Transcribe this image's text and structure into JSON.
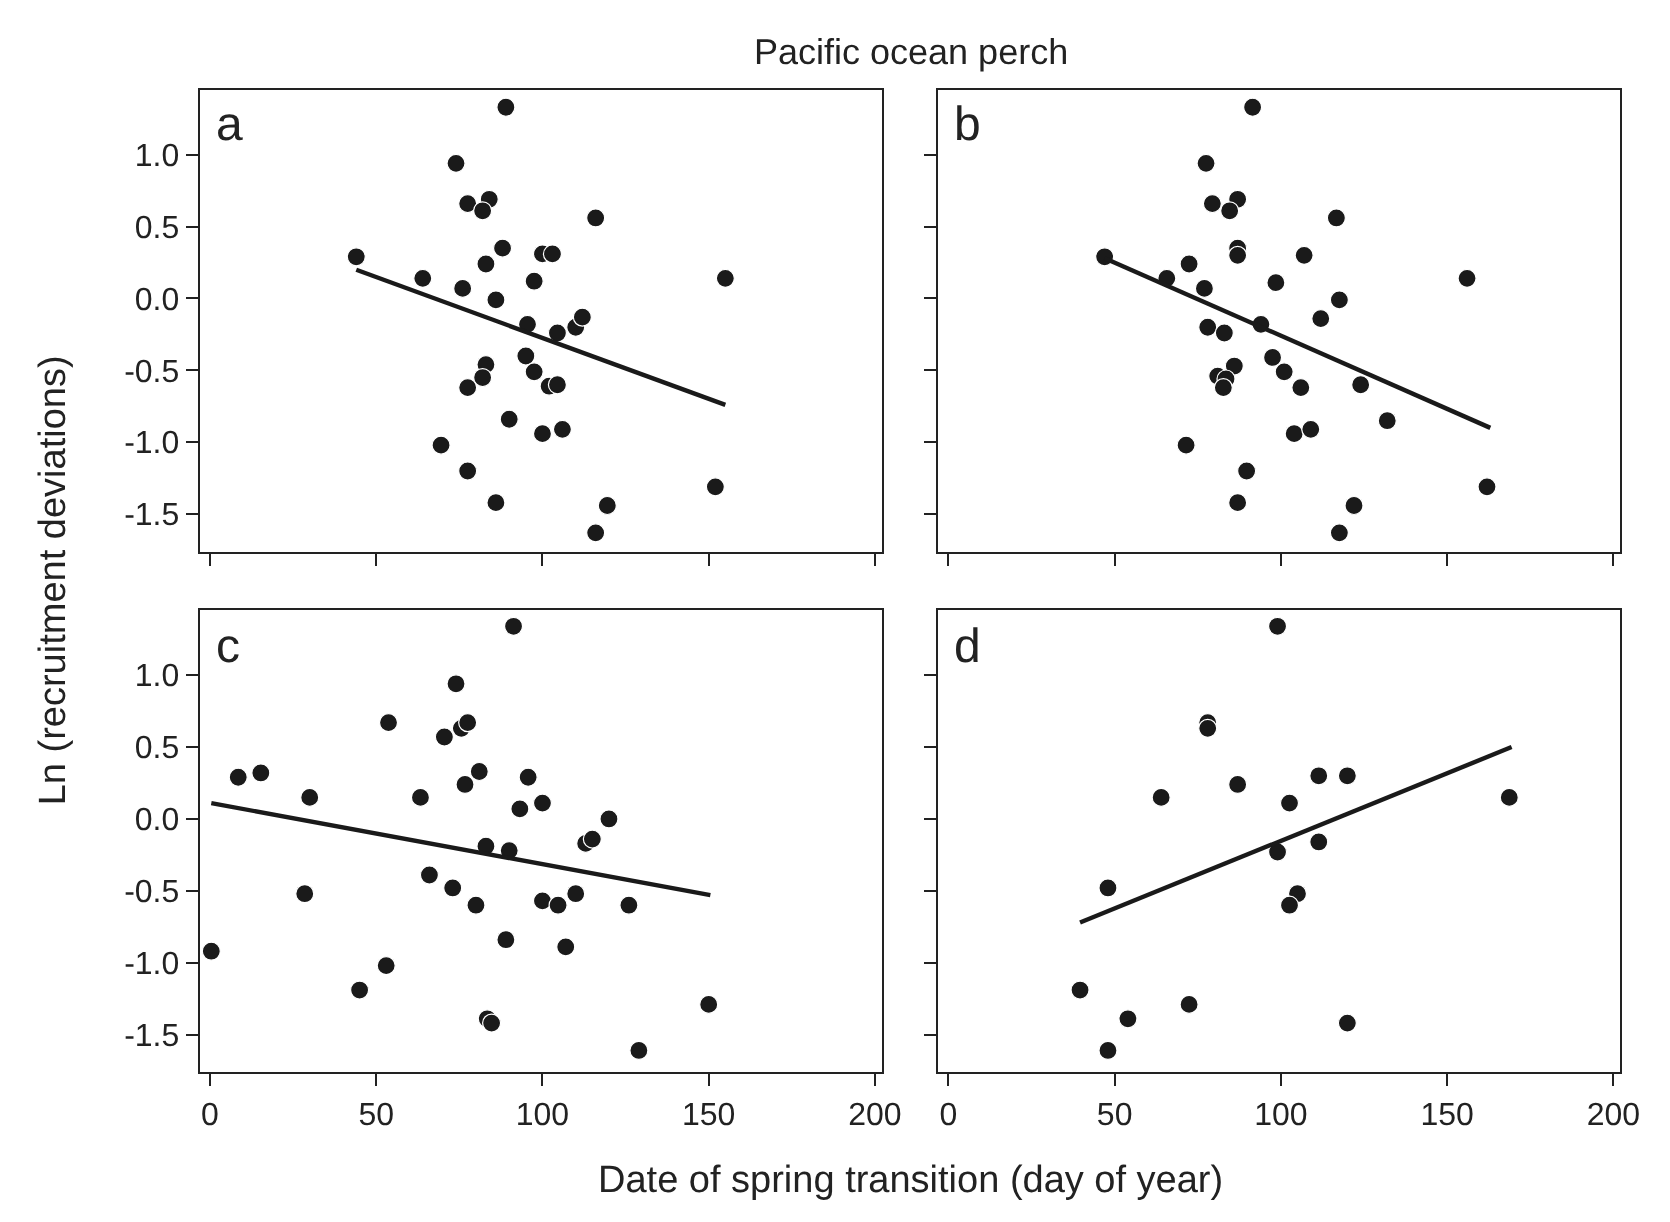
{
  "chart_data": [
    {
      "type": "scatter",
      "title": "a",
      "ylabel": "Ln (recruitment deviations)",
      "annotations": [
        "Pacific ocean perch"
      ],
      "xlim": [
        -3,
        202
      ],
      "ylim": [
        -1.76,
        1.45
      ],
      "xticks": [
        0,
        50,
        100,
        150,
        200
      ],
      "yticks": [
        {
          "value": -1.5,
          "label": "-1.5"
        },
        {
          "value": -1.0,
          "label": "-1.0"
        },
        {
          "value": -0.5,
          "label": "-0.5"
        },
        {
          "value": 0.0,
          "label": "0.0"
        },
        {
          "value": 0.5,
          "label": "0.5"
        },
        {
          "value": 1.0,
          "label": "1.0"
        }
      ],
      "tick_labels": "y",
      "marker": "circle",
      "series": [
        {
          "color": "#1a1a1a",
          "x": [
            89,
            74,
            77.5,
            84,
            82,
            116,
            44,
            88,
            83,
            100,
            103,
            64,
            76,
            97.5,
            86,
            155,
            95.5,
            104.5,
            110,
            112,
            83,
            82,
            77.5,
            95,
            97.5,
            102,
            104.5,
            90,
            100,
            106,
            69.5,
            77.5,
            86,
            152,
            119.5,
            116
          ],
          "values": [
            1.33,
            0.94,
            0.66,
            0.69,
            0.61,
            0.56,
            0.29,
            0.35,
            0.24,
            0.31,
            0.31,
            0.14,
            0.07,
            0.12,
            -0.01,
            0.14,
            -0.18,
            -0.24,
            -0.2,
            -0.13,
            -0.46,
            -0.55,
            -0.62,
            -0.4,
            -0.51,
            -0.61,
            -0.6,
            -0.84,
            -0.94,
            -0.91,
            -1.02,
            -1.2,
            -1.42,
            -1.31,
            -1.44,
            -1.63
          ]
        },
        {
          "type": "line",
          "marker": "none",
          "color": "#1a1a1a",
          "x": [
            44,
            155
          ],
          "values": [
            0.2,
            -0.74
          ]
        }
      ]
    },
    {
      "type": "scatter",
      "title": "b",
      "xlim": [
        -3,
        202
      ],
      "ylim": [
        -1.76,
        1.45
      ],
      "xticks": [
        0,
        50,
        100,
        150,
        200
      ],
      "yticks": [
        {
          "value": -1.5,
          "label": null
        },
        {
          "value": -1.0,
          "label": null
        },
        {
          "value": -0.5,
          "label": null
        },
        {
          "value": 0.0,
          "label": null
        },
        {
          "value": 0.5,
          "label": null
        },
        {
          "value": 1.0,
          "label": null
        }
      ],
      "tick_labels": false,
      "marker": "circle",
      "series": [
        {
          "color": "#1a1a1a",
          "x": [
            91.5,
            77.5,
            79.4,
            87,
            84.6,
            116.7,
            47,
            87,
            87,
            107,
            72.4,
            65.7,
            77,
            98.5,
            117.6,
            156,
            112,
            94,
            78,
            83,
            97.5,
            101,
            86,
            81,
            83.5,
            82.7,
            106,
            124,
            104,
            109,
            132,
            71.5,
            89.7,
            87,
            122,
            117.6,
            162
          ],
          "values": [
            1.33,
            0.94,
            0.66,
            0.69,
            0.61,
            0.56,
            0.29,
            0.35,
            0.3,
            0.3,
            0.24,
            0.14,
            0.07,
            0.11,
            -0.01,
            0.14,
            -0.14,
            -0.18,
            -0.2,
            -0.24,
            -0.41,
            -0.51,
            -0.47,
            -0.54,
            -0.56,
            -0.62,
            -0.62,
            -0.6,
            -0.94,
            -0.91,
            -0.85,
            -1.02,
            -1.2,
            -1.42,
            -1.44,
            -1.63,
            -1.31
          ]
        },
        {
          "type": "line",
          "marker": "none",
          "color": "#1a1a1a",
          "x": [
            47,
            163
          ],
          "values": [
            0.28,
            -0.9
          ]
        }
      ]
    },
    {
      "type": "scatter",
      "title": "c",
      "xlabel": "Date of spring transition (day of year)",
      "xlim": [
        -3,
        202
      ],
      "ylim": [
        -1.76,
        1.45
      ],
      "xticks": [
        0,
        50,
        100,
        150,
        200
      ],
      "yticks": [
        {
          "value": -1.5,
          "label": "-1.5"
        },
        {
          "value": -1.0,
          "label": "-1.0"
        },
        {
          "value": -0.5,
          "label": "-0.5"
        },
        {
          "value": 0.0,
          "label": "0.0"
        },
        {
          "value": 0.5,
          "label": "0.5"
        },
        {
          "value": 1.0,
          "label": "1.0"
        }
      ],
      "marker": "circle",
      "series": [
        {
          "color": "#1a1a1a",
          "x": [
            91.3,
            74,
            53.7,
            70.5,
            75.6,
            77.5,
            8.5,
            15.3,
            81,
            95.7,
            76.7,
            30,
            63.3,
            93.2,
            100,
            120,
            113,
            115,
            83,
            90,
            66,
            73,
            80,
            28.5,
            100,
            104.7,
            110,
            126,
            0.4,
            89,
            107,
            53,
            45,
            83.4,
            84.7,
            150,
            129
          ],
          "values": [
            1.34,
            0.94,
            0.67,
            0.57,
            0.63,
            0.67,
            0.29,
            0.32,
            0.33,
            0.29,
            0.24,
            0.15,
            0.15,
            0.07,
            0.11,
            0.0,
            -0.17,
            -0.14,
            -0.19,
            -0.22,
            -0.39,
            -0.48,
            -0.6,
            -0.52,
            -0.57,
            -0.6,
            -0.52,
            -0.6,
            -0.92,
            -0.84,
            -0.89,
            -1.02,
            -1.19,
            -1.39,
            -1.42,
            -1.29,
            -1.61
          ]
        },
        {
          "type": "line",
          "marker": "none",
          "color": "#1a1a1a",
          "x": [
            0.4,
            150.5
          ],
          "values": [
            0.11,
            -0.53
          ]
        }
      ]
    },
    {
      "type": "scatter",
      "title": "d",
      "xlim": [
        -3,
        202
      ],
      "ylim": [
        -1.76,
        1.45
      ],
      "xticks": [
        0,
        50,
        100,
        150,
        200
      ],
      "yticks": [
        {
          "value": -1.5,
          "label": null
        },
        {
          "value": -1.0,
          "label": null
        },
        {
          "value": -0.5,
          "label": null
        },
        {
          "value": 0.0,
          "label": null
        },
        {
          "value": 0.5,
          "label": null
        },
        {
          "value": 1.0,
          "label": null
        }
      ],
      "tick_labels": "x",
      "marker": "circle",
      "series": [
        {
          "color": "#1a1a1a",
          "x": [
            99,
            78,
            78,
            64,
            87,
            111.4,
            120,
            102.6,
            168.7,
            111.4,
            99,
            105,
            102.6,
            48,
            39.6,
            54,
            72.4,
            48,
            120
          ],
          "values": [
            1.34,
            0.67,
            0.63,
            0.15,
            0.24,
            0.3,
            0.3,
            0.11,
            0.15,
            -0.16,
            -0.23,
            -0.52,
            -0.6,
            -0.48,
            -1.19,
            -1.39,
            -1.29,
            -1.61,
            -1.42
          ]
        },
        {
          "type": "line",
          "marker": "none",
          "color": "#1a1a1a",
          "x": [
            39.6,
            169.4
          ],
          "values": [
            -0.72,
            0.5
          ]
        }
      ]
    }
  ]
}
